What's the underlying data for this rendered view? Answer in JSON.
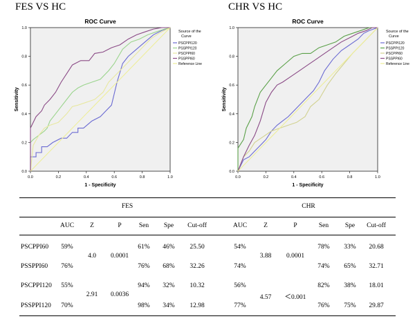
{
  "headings": {
    "left": "FES VS HC",
    "right": "CHR VS HC"
  },
  "chart_data": [
    {
      "type": "line",
      "title": "ROC Curve",
      "xlabel": "1 - Specificity",
      "ylabel": "Sensitivity",
      "xlim": [
        0,
        1
      ],
      "ylim": [
        0,
        1
      ],
      "xticks": [
        "0.0",
        "0.2",
        "0.4",
        "0.6",
        "0.8",
        "1.0"
      ],
      "yticks": [
        "0.0",
        "0.2",
        "0.4",
        "0.6",
        "0.8",
        "1.0"
      ],
      "legend_title": "Source of the Curve",
      "legend_position": "right",
      "grid": false,
      "series": [
        {
          "name": "PSCPPI120",
          "color": "#6a6ad2",
          "x": [
            0,
            0,
            0.04,
            0.04,
            0.08,
            0.08,
            0.12,
            0.16,
            0.16,
            0.22,
            0.26,
            0.3,
            0.34,
            0.34,
            0.38,
            0.44,
            0.5,
            0.54,
            0.58,
            0.62,
            0.66,
            0.7,
            0.76,
            0.82,
            0.88,
            0.94,
            1.0
          ],
          "y": [
            0,
            0.1,
            0.1,
            0.13,
            0.13,
            0.17,
            0.17,
            0.2,
            0.2,
            0.23,
            0.23,
            0.27,
            0.27,
            0.3,
            0.3,
            0.35,
            0.38,
            0.42,
            0.46,
            0.62,
            0.75,
            0.8,
            0.85,
            0.9,
            0.95,
            0.98,
            1.0
          ]
        },
        {
          "name": "PSSPPI120",
          "color": "#9ad48c",
          "x": [
            0,
            0,
            0.02,
            0.06,
            0.1,
            0.12,
            0.14,
            0.18,
            0.22,
            0.26,
            0.3,
            0.34,
            0.38,
            0.44,
            0.5,
            0.56,
            0.6,
            0.66,
            0.72,
            0.78,
            0.84,
            0.9,
            0.96,
            1.0
          ],
          "y": [
            0,
            0.2,
            0.22,
            0.25,
            0.28,
            0.3,
            0.35,
            0.4,
            0.45,
            0.5,
            0.55,
            0.58,
            0.6,
            0.62,
            0.64,
            0.7,
            0.75,
            0.85,
            0.9,
            0.92,
            0.95,
            0.97,
            0.99,
            1.0
          ]
        },
        {
          "name": "PSCPPI60",
          "color": "#e8e8a0",
          "x": [
            0,
            0.02,
            0.06,
            0.1,
            0.14,
            0.2,
            0.26,
            0.3,
            0.34,
            0.4,
            0.46,
            0.52,
            0.56,
            0.62,
            0.68,
            0.74,
            0.8,
            0.86,
            0.92,
            1.0
          ],
          "y": [
            0,
            0.18,
            0.25,
            0.3,
            0.32,
            0.34,
            0.4,
            0.45,
            0.46,
            0.48,
            0.5,
            0.55,
            0.62,
            0.68,
            0.74,
            0.8,
            0.86,
            0.92,
            0.96,
            1.0
          ]
        },
        {
          "name": "PSSPPI60",
          "color": "#8a4a86",
          "x": [
            0,
            0,
            0.04,
            0.08,
            0.1,
            0.14,
            0.18,
            0.22,
            0.26,
            0.3,
            0.36,
            0.42,
            0.46,
            0.52,
            0.58,
            0.64,
            0.7,
            0.76,
            0.82,
            0.88,
            0.94,
            1.0
          ],
          "y": [
            0,
            0.3,
            0.38,
            0.42,
            0.46,
            0.5,
            0.55,
            0.62,
            0.68,
            0.74,
            0.77,
            0.77,
            0.82,
            0.83,
            0.86,
            0.88,
            0.92,
            0.95,
            0.97,
            0.99,
            1.0,
            1.0
          ]
        },
        {
          "name": "Reference Line",
          "color": "#eeee9a",
          "x": [
            0,
            1
          ],
          "y": [
            0,
            1
          ]
        }
      ]
    },
    {
      "type": "line",
      "title": "ROC Curve",
      "xlabel": "1 - Specificity",
      "ylabel": "Sensitivity",
      "xlim": [
        0,
        1
      ],
      "ylim": [
        0,
        1
      ],
      "xticks": [
        "0.0",
        "0.2",
        "0.4",
        "0.6",
        "0.8",
        "1.0"
      ],
      "yticks": [
        "0.0",
        "0.2",
        "0.4",
        "0.6",
        "0.8",
        "1.0"
      ],
      "legend_title": "Source of the Curve",
      "legend_position": "right",
      "grid": false,
      "series": [
        {
          "name": "PSCPPI120",
          "color": "#6a6ad2",
          "x": [
            0,
            0.04,
            0.08,
            0.12,
            0.16,
            0.2,
            0.24,
            0.28,
            0.32,
            0.36,
            0.4,
            0.44,
            0.5,
            0.54,
            0.58,
            0.62,
            0.68,
            0.74,
            0.8,
            0.86,
            0.9,
            0.94,
            1.0
          ],
          "y": [
            0,
            0.08,
            0.1,
            0.14,
            0.18,
            0.22,
            0.28,
            0.32,
            0.35,
            0.38,
            0.42,
            0.46,
            0.52,
            0.56,
            0.62,
            0.7,
            0.78,
            0.84,
            0.88,
            0.92,
            0.96,
            0.98,
            1.0
          ]
        },
        {
          "name": "PSSPPI120",
          "color": "#5aa048",
          "x": [
            0,
            0,
            0.04,
            0.06,
            0.1,
            0.12,
            0.16,
            0.2,
            0.24,
            0.28,
            0.34,
            0.4,
            0.46,
            0.52,
            0.58,
            0.64,
            0.7,
            0.76,
            0.82,
            0.88,
            0.94,
            1.0
          ],
          "y": [
            0,
            0.16,
            0.22,
            0.3,
            0.38,
            0.45,
            0.55,
            0.6,
            0.65,
            0.7,
            0.75,
            0.8,
            0.82,
            0.82,
            0.86,
            0.88,
            0.9,
            0.94,
            0.96,
            0.98,
            1.0,
            1.0
          ]
        },
        {
          "name": "PSCPPI60",
          "color": "#d2d290",
          "x": [
            0,
            0.04,
            0.08,
            0.12,
            0.18,
            0.24,
            0.3,
            0.36,
            0.42,
            0.48,
            0.52,
            0.58,
            0.64,
            0.7,
            0.76,
            0.82,
            0.88,
            0.94,
            1.0
          ],
          "y": [
            0,
            0.1,
            0.14,
            0.2,
            0.24,
            0.28,
            0.3,
            0.32,
            0.34,
            0.38,
            0.45,
            0.5,
            0.6,
            0.68,
            0.75,
            0.82,
            0.88,
            0.94,
            1.0
          ]
        },
        {
          "name": "PSSPPI60",
          "color": "#8a4a86",
          "x": [
            0,
            0.04,
            0.08,
            0.12,
            0.16,
            0.2,
            0.24,
            0.28,
            0.32,
            0.38,
            0.44,
            0.5,
            0.56,
            0.62,
            0.68,
            0.74,
            0.8,
            0.86,
            0.92,
            0.96,
            1.0
          ],
          "y": [
            0,
            0.1,
            0.18,
            0.25,
            0.35,
            0.48,
            0.55,
            0.6,
            0.62,
            0.66,
            0.7,
            0.74,
            0.78,
            0.82,
            0.86,
            0.9,
            0.93,
            0.96,
            0.98,
            1.0,
            1.0
          ]
        },
        {
          "name": "Reference Line",
          "color": "#eeee9a",
          "x": [
            0,
            1
          ],
          "y": [
            0,
            1
          ]
        }
      ]
    }
  ],
  "table": {
    "group_headers": [
      "FES",
      "CHR"
    ],
    "columns": [
      "AUC",
      "Z",
      "P",
      "Sen",
      "Spe",
      "Cut-off",
      "AUC",
      "Z",
      "P",
      "Sen",
      "Spe",
      "Cut-off"
    ],
    "rows": [
      {
        "label": "PSCPPI60",
        "fes": [
          "59%",
          "61%",
          "46%",
          "25.50"
        ],
        "chr": [
          "54%",
          "78%",
          "33%",
          "20.68"
        ]
      },
      {
        "label": "PSSPPI60",
        "fes": [
          "76%",
          "76%",
          "68%",
          "32.26"
        ],
        "chr": [
          "74%",
          "74%",
          "65%",
          "32.71"
        ]
      },
      {
        "label": "PSCPPI120",
        "fes": [
          "55%",
          "94%",
          "32%",
          "10.32"
        ],
        "chr": [
          "56%",
          "82%",
          "38%",
          "18.01"
        ]
      },
      {
        "label": "PSSPPI120",
        "fes": [
          "70%",
          "98%",
          "34%",
          "12.98"
        ],
        "chr": [
          "77%",
          "76%",
          "75%",
          "29.87"
        ]
      }
    ],
    "pair_stats": [
      {
        "fes_z": "4.0",
        "fes_p": "0.0001",
        "chr_z": "3.88",
        "chr_p": "0.0001"
      },
      {
        "fes_z": "2.91",
        "fes_p": "0.0036",
        "chr_z": "4.57",
        "chr_p": "＜0.001"
      }
    ]
  }
}
